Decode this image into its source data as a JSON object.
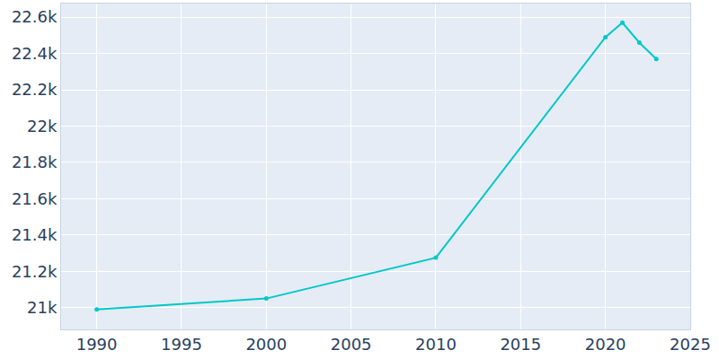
{
  "chart_data": {
    "type": "line",
    "x": [
      1990,
      2000,
      2010,
      2020,
      2021,
      2022,
      2023
    ],
    "values": [
      20990,
      21050,
      21275,
      22490,
      22570,
      22460,
      22370
    ],
    "color": "#00c8c8",
    "marker": "circle",
    "line_style": "solid",
    "xlim": [
      1987.9,
      2025
    ],
    "xticks": [
      1990,
      1995,
      2000,
      2005,
      2010,
      2015,
      2020,
      2025
    ],
    "ylim": [
      20880,
      22675
    ],
    "yticks": [
      {
        "value": 21000,
        "label": "21k"
      },
      {
        "value": 21200,
        "label": "21.2k"
      },
      {
        "value": 21400,
        "label": "21.4k"
      },
      {
        "value": 21600,
        "label": "21.6k"
      },
      {
        "value": 21800,
        "label": "21.8k"
      },
      {
        "value": 22000,
        "label": "22k"
      },
      {
        "value": 22200,
        "label": "22.2k"
      },
      {
        "value": 22400,
        "label": "22.4k"
      },
      {
        "value": 22600,
        "label": "22.6k"
      }
    ],
    "grid": true
  }
}
